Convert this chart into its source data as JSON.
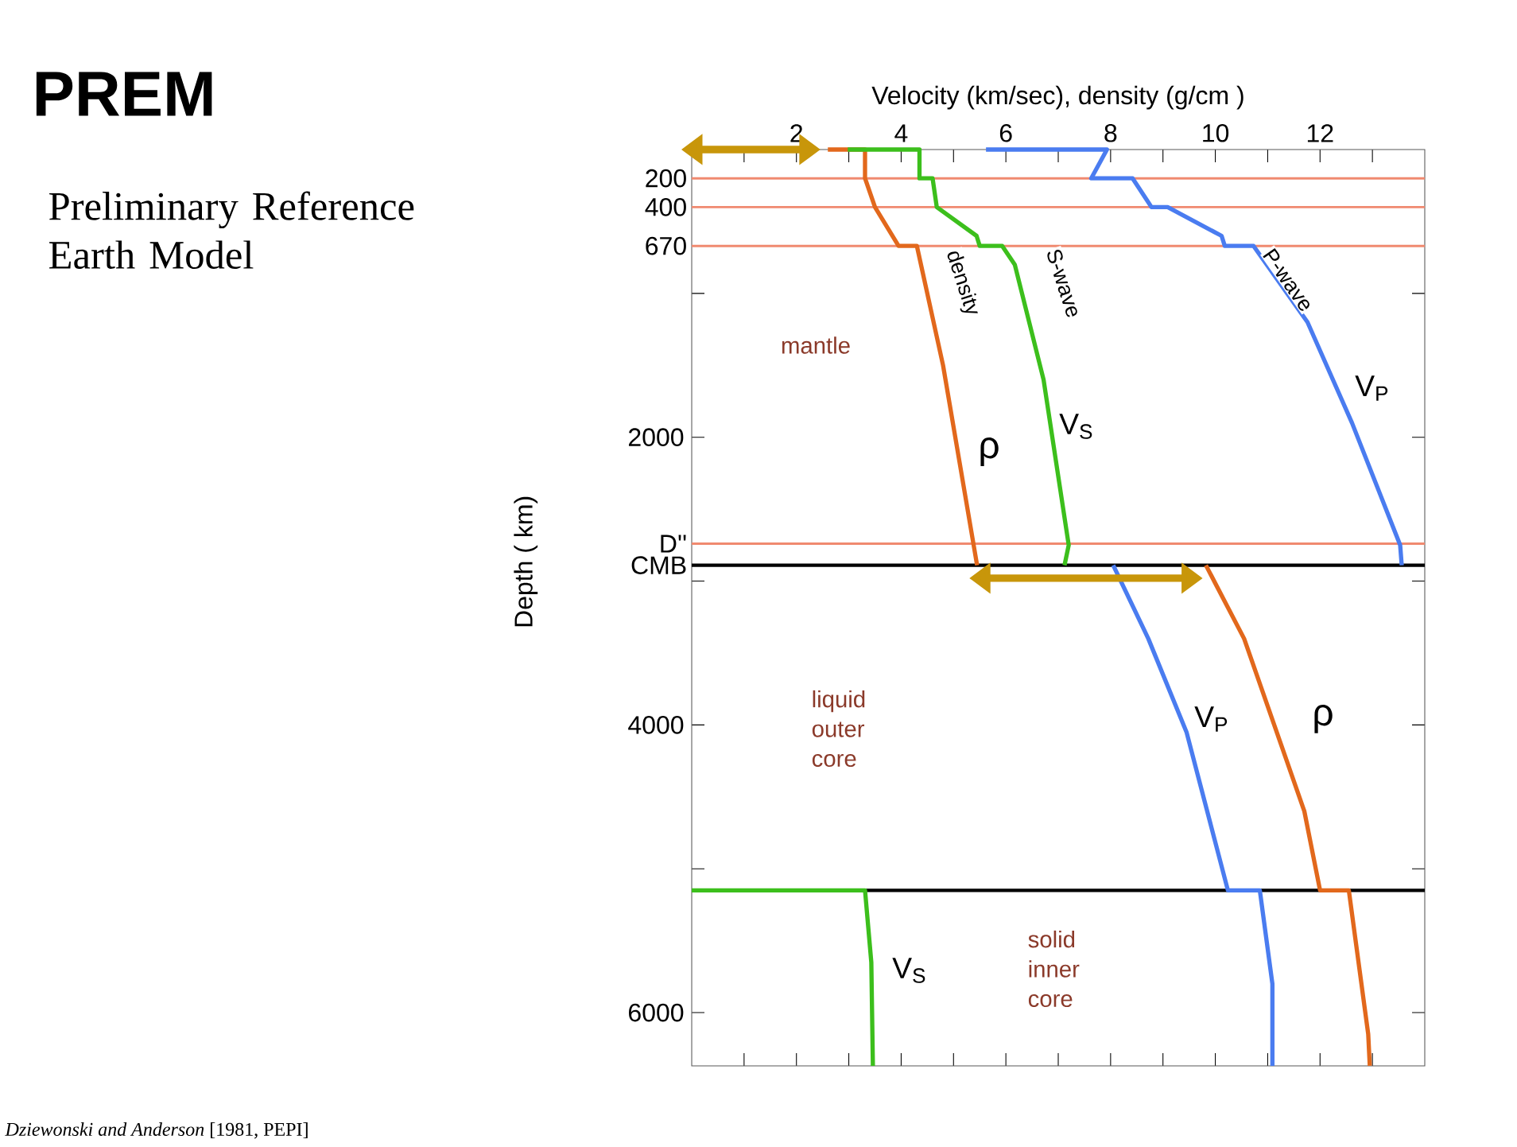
{
  "chart_data": {
    "type": "line",
    "title": "PREM",
    "subtitle": "Preliminary Reference Earth Model",
    "xlabel": "Velocity (km/sec), density (g/cm )",
    "ylabel": "Depth ( km)",
    "xlim": [
      0,
      14
    ],
    "ylim": [
      6370,
      0
    ],
    "xticks": [
      {
        "value": 1,
        "label": null
      },
      2,
      {
        "value": 3,
        "label": null
      },
      4,
      {
        "value": 5,
        "label": null
      },
      6,
      {
        "value": 7,
        "label": null
      },
      8,
      {
        "value": 9,
        "label": null
      },
      10,
      {
        "value": 11,
        "label": null
      },
      12,
      {
        "value": 13,
        "label": null
      }
    ],
    "yticks": [
      {
        "value": 1000,
        "label": null
      },
      2000,
      {
        "value": 3000,
        "label": null
      },
      4000,
      {
        "value": 5000,
        "label": null
      },
      6000
    ],
    "marker": "none",
    "line_style": "solid",
    "series": [
      {
        "color": "#e2681c",
        "x": [
          2.6,
          3.31,
          3.31,
          3.5,
          3.95,
          4.3,
          4.8,
          5.45,
          null,
          9.82,
          10.55,
          11.7,
          12.0,
          12.55,
          12.92,
          12.95
        ],
        "values": [
          0,
          0,
          200,
          400,
          670,
          670,
          1500,
          2890,
          null,
          2890,
          3400,
          4600,
          5150,
          5150,
          6150,
          6370
        ]
      },
      {
        "color": "#3cbf1c",
        "x": [
          2.98,
          4.35,
          4.35,
          4.6,
          4.68,
          5.44,
          5.5,
          5.93,
          6.17,
          6.72,
          7.2,
          7.12,
          null,
          0,
          3.31,
          3.43,
          3.46
        ],
        "values": [
          0,
          0,
          200,
          200,
          400,
          600,
          670,
          670,
          800,
          1600,
          2750,
          2890,
          null,
          5150,
          5150,
          5650,
          6370
        ]
      },
      {
        "color": "#4a7cf0",
        "x": [
          5.62,
          7.93,
          7.63,
          8.42,
          8.78,
          9.09,
          10.12,
          10.18,
          10.73,
          11.76,
          12.61,
          13.53,
          13.56,
          null,
          8.05,
          8.72,
          9.45,
          10.24,
          10.85,
          11.09,
          11.09
        ],
        "values": [
          0,
          0,
          200,
          200,
          400,
          400,
          600,
          670,
          670,
          1200,
          1900,
          2750,
          2890,
          null,
          2890,
          3400,
          4050,
          5150,
          5150,
          5800,
          6370
        ]
      }
    ],
    "ref_lines": [
      {
        "axis": "y",
        "value": 200,
        "label": "200",
        "color": "#f08a70"
      },
      {
        "axis": "y",
        "value": 400,
        "label": "400",
        "color": "#f08a70"
      },
      {
        "axis": "y",
        "value": 670,
        "label": "670",
        "color": "#f08a70"
      },
      {
        "axis": "y",
        "value": 2740,
        "label": "D''",
        "color": "#f08a70"
      },
      {
        "axis": "y",
        "value": 2890,
        "label": "CMB",
        "color": "#000000"
      },
      {
        "axis": "y",
        "value": 5150,
        "color": "#000000"
      }
    ],
    "annotations": [
      "mantle",
      "density",
      "S-wave",
      "P-wave",
      "V$_{P}$",
      "V$_{S}$",
      "ρ",
      "liquid outer core",
      "V$_{P}$",
      "ρ",
      "solid inner core",
      "V$_{S}$",
      "*Dziewonski and Anderson* [1981, PEPI]"
    ]
  }
}
